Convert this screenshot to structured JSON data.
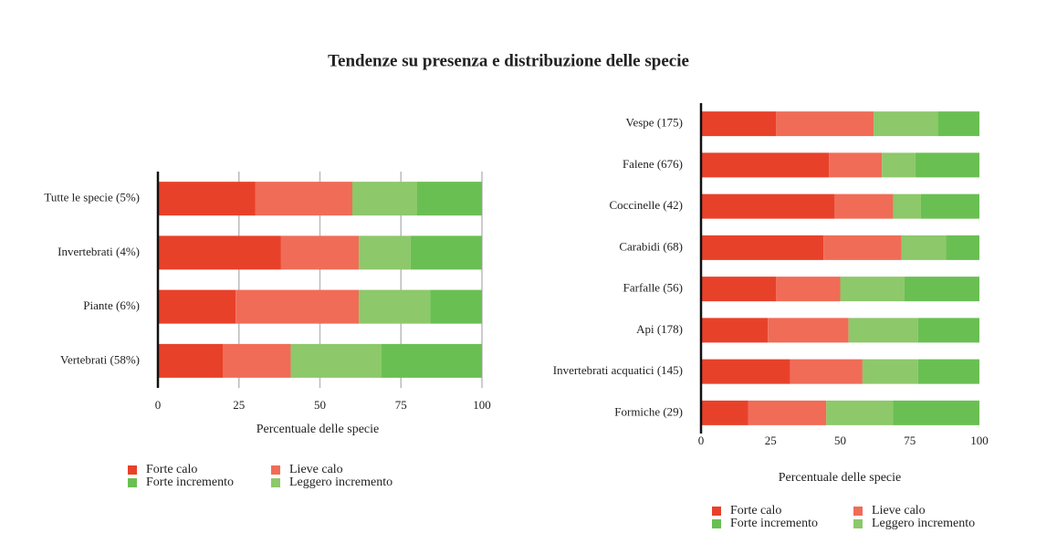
{
  "title": "Tendenze su presenza e distribuzione delle specie",
  "chart_data": [
    {
      "type": "stacked-bar-horizontal",
      "x_label": "Percentuale delle specie",
      "categories": [
        "Tutte le specie (5%)",
        "Invertebrati (4%)",
        "Piante  (6%)",
        "Vertebrati (58%)"
      ],
      "series": [
        {
          "name": "Forte calo",
          "color": "#e8412a",
          "values": [
            30,
            38,
            24,
            20
          ]
        },
        {
          "name": "Lieve calo",
          "color": "#f06c57",
          "values": [
            30,
            24,
            38,
            21
          ]
        },
        {
          "name": "Leggero incremento",
          "color": "#8dc86a",
          "values": [
            20,
            16,
            22,
            28
          ]
        },
        {
          "name": "Forte incremento",
          "color": "#6abf52",
          "values": [
            20,
            22,
            16,
            31
          ]
        }
      ],
      "xlim": [
        0,
        100
      ],
      "xticks": [
        0,
        25,
        50,
        75,
        100
      ],
      "grid": true
    },
    {
      "type": "stacked-bar-horizontal",
      "x_label": "Percentuale delle specie",
      "categories": [
        "Vespe   (175)",
        "Falene  (676)",
        "Coccinelle  (42)",
        "Carabidi (68)",
        "Farfalle (56)",
        "Api  (178)",
        "Invertebrati acquatici (145)",
        "Formiche      (29)"
      ],
      "series": [
        {
          "name": "Forte calo",
          "color": "#e8412a",
          "values": [
            27,
            46,
            48,
            44,
            27,
            24,
            32,
            17
          ]
        },
        {
          "name": "Lieve calo",
          "color": "#f06c57",
          "values": [
            35,
            19,
            21,
            28,
            23,
            29,
            26,
            28
          ]
        },
        {
          "name": "Leggero incremento",
          "color": "#8dc86a",
          "values": [
            23,
            12,
            10,
            16,
            23,
            25,
            20,
            24
          ]
        },
        {
          "name": "Forte incremento",
          "color": "#6abf52",
          "values": [
            15,
            23,
            21,
            12,
            27,
            22,
            22,
            31
          ]
        }
      ],
      "xlim": [
        0,
        100
      ],
      "xticks": [
        0,
        25,
        50,
        75,
        100
      ],
      "grid": false
    }
  ]
}
